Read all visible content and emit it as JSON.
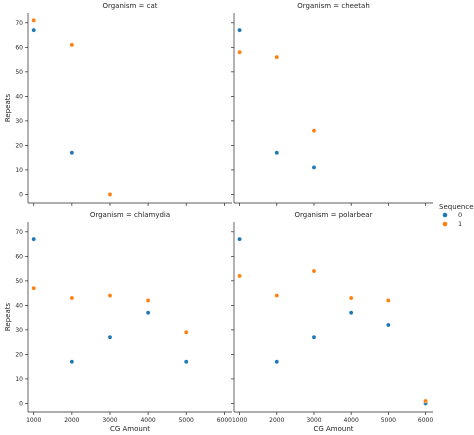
{
  "chart_data": {
    "type": "scatter",
    "facet_prefix": "Organism = ",
    "xlabel": "CG Amount",
    "ylabel": "Repeats",
    "xlim": [
      850,
      6200
    ],
    "ylim": [
      -3.5,
      74
    ],
    "x_ticks": [
      1000,
      2000,
      3000,
      4000,
      5000,
      6000
    ],
    "y_ticks": [
      0,
      10,
      20,
      30,
      40,
      50,
      60,
      70
    ],
    "legend": {
      "title": "Sequence",
      "position": "right",
      "entries": [
        {
          "label": "0",
          "color": "#1f77b4"
        },
        {
          "label": "1",
          "color": "#ff7f0e"
        }
      ]
    },
    "panels": [
      {
        "organism": "cat",
        "series": [
          {
            "sequence": "0",
            "color": "#1f77b4",
            "points": [
              [
                1000,
                67
              ],
              [
                2000,
                17
              ]
            ]
          },
          {
            "sequence": "1",
            "color": "#ff7f0e",
            "points": [
              [
                1000,
                71
              ],
              [
                2000,
                61
              ],
              [
                3000,
                0
              ]
            ]
          }
        ]
      },
      {
        "organism": "cheetah",
        "series": [
          {
            "sequence": "0",
            "color": "#1f77b4",
            "points": [
              [
                1000,
                67
              ],
              [
                2000,
                17
              ],
              [
                3000,
                11
              ]
            ]
          },
          {
            "sequence": "1",
            "color": "#ff7f0e",
            "points": [
              [
                1000,
                58
              ],
              [
                2000,
                56
              ],
              [
                3000,
                26
              ]
            ]
          }
        ]
      },
      {
        "organism": "chlamydia",
        "series": [
          {
            "sequence": "0",
            "color": "#1f77b4",
            "points": [
              [
                1000,
                67
              ],
              [
                2000,
                17
              ],
              [
                3000,
                27
              ],
              [
                4000,
                37
              ],
              [
                5000,
                17
              ]
            ]
          },
          {
            "sequence": "1",
            "color": "#ff7f0e",
            "points": [
              [
                1000,
                47
              ],
              [
                2000,
                43
              ],
              [
                3000,
                44
              ],
              [
                4000,
                42
              ],
              [
                5000,
                29
              ]
            ]
          }
        ]
      },
      {
        "organism": "polarbear",
        "series": [
          {
            "sequence": "0",
            "color": "#1f77b4",
            "points": [
              [
                1000,
                67
              ],
              [
                2000,
                17
              ],
              [
                3000,
                27
              ],
              [
                4000,
                37
              ],
              [
                5000,
                32
              ],
              [
                6000,
                0
              ]
            ]
          },
          {
            "sequence": "1",
            "color": "#ff7f0e",
            "points": [
              [
                1000,
                52
              ],
              [
                2000,
                44
              ],
              [
                3000,
                54
              ],
              [
                4000,
                43
              ],
              [
                5000,
                42
              ],
              [
                6000,
                1
              ]
            ]
          }
        ]
      }
    ]
  }
}
